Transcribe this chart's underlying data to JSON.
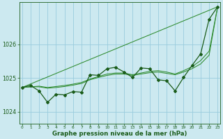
{
  "xlabel": "Graphe pression niveau de la mer (hPa)",
  "background_color": "#cce9f0",
  "grid_color": "#99ccdd",
  "line_color_dark": "#1a5c1a",
  "line_color_med": "#2e8b2e",
  "x_ticks": [
    0,
    1,
    2,
    3,
    4,
    5,
    6,
    7,
    8,
    9,
    10,
    11,
    12,
    13,
    14,
    15,
    16,
    17,
    18,
    19,
    20,
    21,
    22,
    23
  ],
  "y_ticks": [
    1024,
    1025,
    1026
  ],
  "ylim": [
    1023.65,
    1027.25
  ],
  "xlim": [
    -0.3,
    23.3
  ],
  "series_main": {
    "x": [
      0,
      1,
      2,
      3,
      4,
      5,
      6,
      7,
      8,
      9,
      10,
      11,
      12,
      13,
      14,
      15,
      16,
      17,
      18,
      19,
      20,
      21,
      22,
      23
    ],
    "y": [
      1024.72,
      1024.78,
      1024.62,
      1024.28,
      1024.52,
      1024.5,
      1024.6,
      1024.58,
      1025.1,
      1025.08,
      1025.28,
      1025.32,
      1025.18,
      1025.02,
      1025.3,
      1025.28,
      1024.95,
      1024.92,
      1024.62,
      1025.02,
      1025.38,
      1025.72,
      1026.75,
      1027.12
    ]
  },
  "series_smooth1": {
    "x": [
      0,
      23
    ],
    "y": [
      1024.72,
      1027.12
    ]
  },
  "series_smooth2": {
    "x": [
      0,
      23
    ],
    "y": [
      1024.72,
      1027.12
    ]
  },
  "series_smooth3": {
    "x": [
      0,
      23
    ],
    "y": [
      1024.72,
      1027.12
    ]
  },
  "series_trend1": {
    "x": [
      0,
      1,
      2,
      3,
      4,
      5,
      6,
      7,
      8,
      9,
      10,
      11,
      12,
      13,
      14,
      15,
      16,
      17,
      18,
      19,
      20,
      21,
      22,
      23
    ],
    "y": [
      1024.72,
      1024.74,
      1024.74,
      1024.7,
      1024.72,
      1024.75,
      1024.79,
      1024.84,
      1024.95,
      1025.02,
      1025.08,
      1025.12,
      1025.12,
      1025.08,
      1025.12,
      1025.16,
      1025.18,
      1025.14,
      1025.1,
      1025.18,
      1025.28,
      1025.42,
      1025.68,
      1027.12
    ]
  },
  "series_trend2": {
    "x": [
      0,
      1,
      2,
      3,
      4,
      5,
      6,
      7,
      8,
      9,
      10,
      11,
      12,
      13,
      14,
      15,
      16,
      17,
      18,
      19,
      20,
      21,
      22,
      23
    ],
    "y": [
      1024.72,
      1024.74,
      1024.76,
      1024.72,
      1024.75,
      1024.78,
      1024.82,
      1024.87,
      1024.97,
      1025.05,
      1025.12,
      1025.15,
      1025.15,
      1025.1,
      1025.15,
      1025.2,
      1025.22,
      1025.18,
      1025.12,
      1025.22,
      1025.34,
      1025.52,
      1025.8,
      1027.12
    ]
  }
}
